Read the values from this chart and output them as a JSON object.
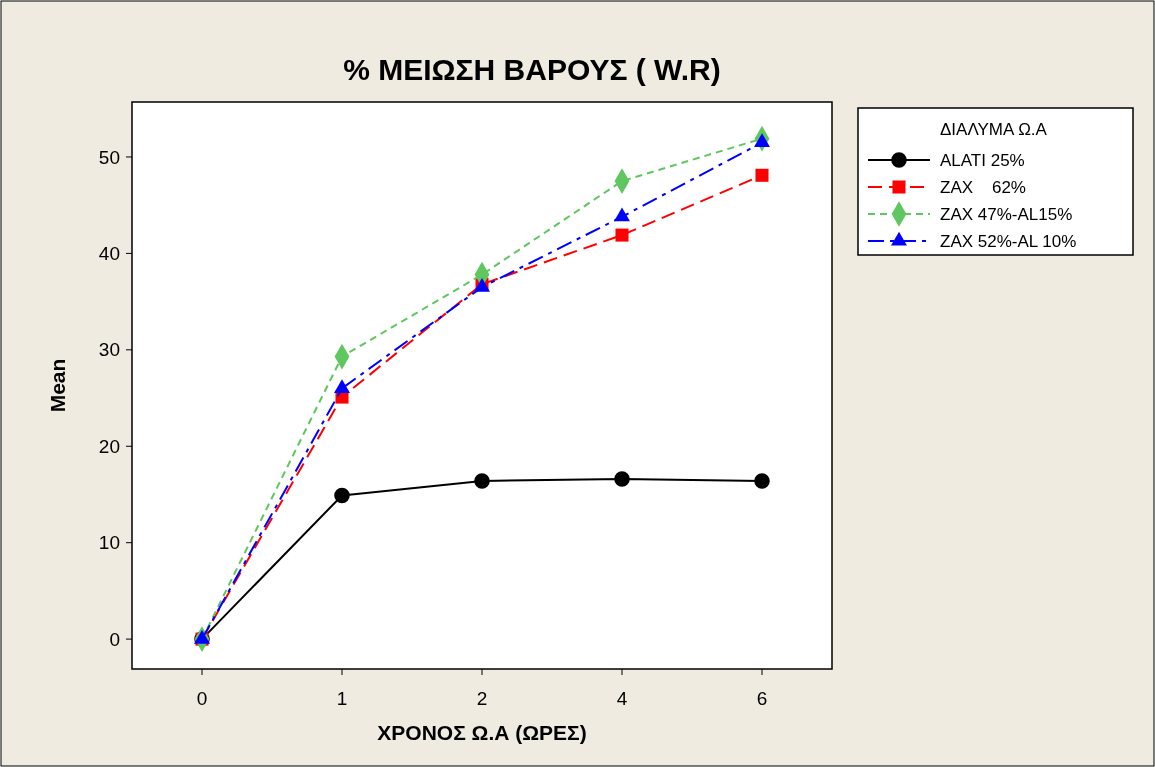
{
  "chart_data": {
    "type": "line",
    "title": "%  ΜΕΙΩΣΗ ΒΑΡΟΥΣ ( W.R)",
    "xlabel": "ΧΡΟΝΟΣ Ω.Α (ΩΡΕΣ)",
    "ylabel": "Mean",
    "legend_title": "ΔΙΑΛΥΜΑ Ω.Α",
    "legend": "right",
    "categories": [
      "0",
      "1",
      "2",
      "4",
      "6"
    ],
    "ylim": [
      -3.1,
      55.7
    ],
    "yticks": [
      0,
      10,
      20,
      30,
      40,
      50
    ],
    "series": [
      {
        "name": "ALATI 25%",
        "color": "#000000",
        "marker": "circle",
        "line_style": "solid",
        "values": [
          0,
          14.9,
          16.4,
          16.6,
          16.4
        ]
      },
      {
        "name": "ZAX    62%",
        "color": "#ff0000",
        "marker": "square",
        "line_style": "dashed",
        "values": [
          0,
          25.1,
          36.8,
          41.9,
          48.1
        ]
      },
      {
        "name": "ZAX 47%-AL15%",
        "color": "#5fc75f",
        "marker": "diamond",
        "line_style": "dashed",
        "values": [
          0,
          29.3,
          37.8,
          47.5,
          51.9
        ]
      },
      {
        "name": "ZAX 52%-AL 10%",
        "color": "#0000ff",
        "marker": "triangle",
        "line_style": "dashed",
        "values": [
          0,
          26.0,
          36.5,
          43.8,
          51.5
        ]
      }
    ]
  }
}
